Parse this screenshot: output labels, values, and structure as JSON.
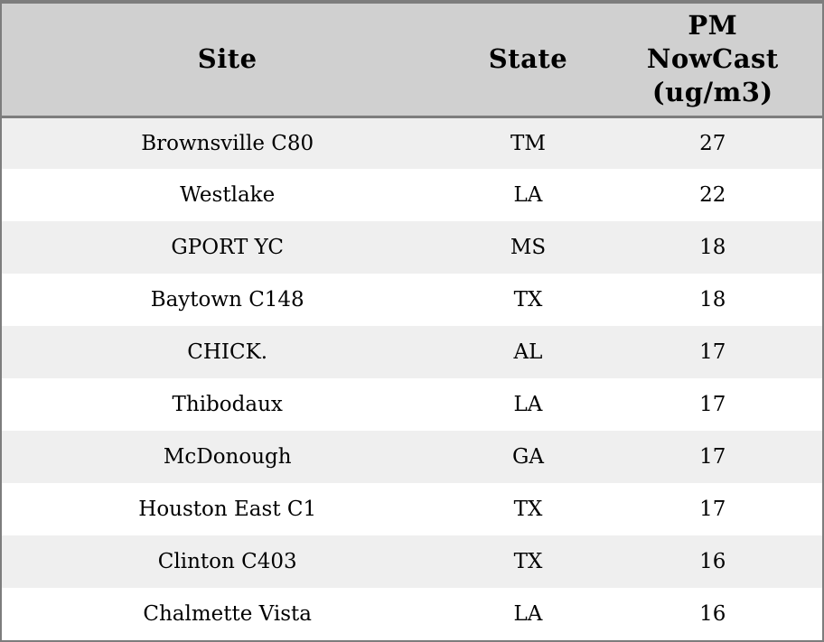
{
  "table": {
    "columns": [
      {
        "key": "site",
        "label": "Site"
      },
      {
        "key": "state",
        "label": "State"
      },
      {
        "key": "pm",
        "label": "PM\nNowCast\n(ug/m3)"
      }
    ],
    "rows": [
      {
        "site": "Brownsville C80",
        "state": "TM",
        "pm": "27"
      },
      {
        "site": "Westlake",
        "state": "LA",
        "pm": "22"
      },
      {
        "site": "GPORT YC",
        "state": "MS",
        "pm": "18"
      },
      {
        "site": "Baytown C148",
        "state": "TX",
        "pm": "18"
      },
      {
        "site": "CHICK.",
        "state": "AL",
        "pm": "17"
      },
      {
        "site": "Thibodaux",
        "state": "LA",
        "pm": "17"
      },
      {
        "site": "McDonough",
        "state": "GA",
        "pm": "17"
      },
      {
        "site": "Houston East C1",
        "state": "TX",
        "pm": "17"
      },
      {
        "site": "Clinton C403",
        "state": "TX",
        "pm": "16"
      },
      {
        "site": "Chalmette Vista",
        "state": "LA",
        "pm": "16"
      }
    ]
  },
  "colors": {
    "border": "#7d7d7d",
    "header_bg": "#d0d0d0",
    "row_alt_bg": "#efefef",
    "row_bg": "#ffffff",
    "text": "#000000"
  }
}
